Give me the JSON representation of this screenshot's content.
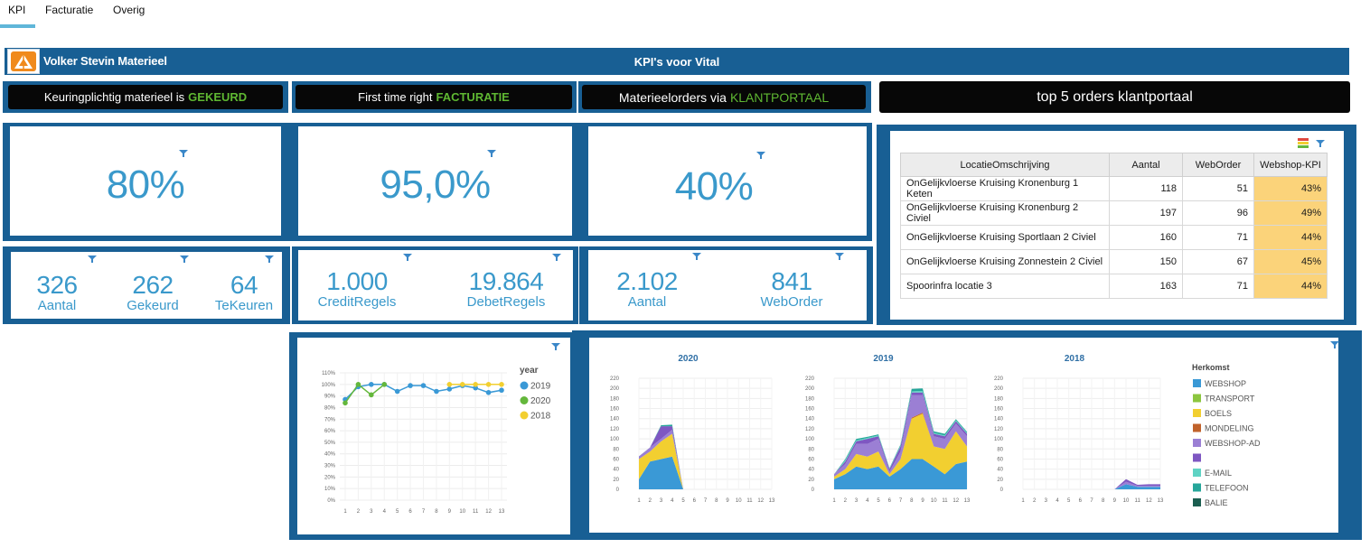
{
  "tabs": [
    {
      "label": "KPI"
    },
    {
      "label": "Facturatie"
    },
    {
      "label": "Overig"
    }
  ],
  "header": {
    "company": "Volker Stevin Materieel",
    "title": "KPI's voor Vital"
  },
  "sections": {
    "keuring": {
      "text": "Keuringplichtig materieel is",
      "highlight": "GEKEURD"
    },
    "facturatie": {
      "text": "First time right",
      "highlight": "FACTURATIE"
    },
    "klantportaal": {
      "text": "Materieelorders via",
      "highlight": "KLANTPORTAAL"
    },
    "top5": {
      "text": "top 5 orders klantportaal"
    }
  },
  "kpis": {
    "keuring": {
      "value": "80%",
      "items": [
        {
          "value": "326",
          "label": "Aantal"
        },
        {
          "value": "262",
          "label": "Gekeurd"
        },
        {
          "value": "64",
          "label": "TeKeuren"
        }
      ]
    },
    "facturatie": {
      "value": "95,0%",
      "items": [
        {
          "value": "1.000",
          "label": "CreditRegels"
        },
        {
          "value": "19.864",
          "label": "DebetRegels"
        }
      ]
    },
    "klantportaal": {
      "value": "40%",
      "items": [
        {
          "value": "2.102",
          "label": "Aantal"
        },
        {
          "value": "841",
          "label": "WebOrder"
        }
      ]
    }
  },
  "top5_table": {
    "columns": [
      "LocatieOmschrijving",
      "Aantal",
      "WebOrder",
      "Webshop-KPI"
    ],
    "rows": [
      [
        "OnGelijkvloerse Kruising Kronenburg 1 Keten",
        "118",
        "51",
        "43%"
      ],
      [
        "OnGelijkvloerse Kruising Kronenburg 2 Civiel",
        "197",
        "96",
        "49%"
      ],
      [
        "OnGelijkvloerse Kruising Sportlaan 2 Civiel",
        "160",
        "71",
        "44%"
      ],
      [
        "OnGelijkvloerse Kruising Zonnestein 2 Civiel",
        "150",
        "67",
        "45%"
      ],
      [
        "Spoorinfra locatie 3",
        "163",
        "71",
        "44%"
      ]
    ]
  },
  "colors": {
    "navy": "#185f94",
    "kpi_blue": "#3a99cb",
    "green": "#5fb832",
    "yellow": "#f2cf30",
    "kpi_cell": "#fbd37a"
  },
  "chart_data": [
    {
      "type": "line",
      "title": "",
      "x": [
        1,
        2,
        3,
        4,
        5,
        6,
        7,
        8,
        9,
        10,
        11,
        12,
        13
      ],
      "yticks": [
        "0%",
        "10%",
        "20%",
        "30%",
        "40%",
        "50%",
        "60%",
        "70%",
        "80%",
        "90%",
        "100%",
        "110%"
      ],
      "ylim": [
        0,
        110
      ],
      "legend_title": "year",
      "series": [
        {
          "name": "2019",
          "color": "#3a99d6",
          "values": [
            87,
            98,
            100,
            100,
            94,
            99,
            99,
            94,
            96,
            99,
            97,
            93,
            95
          ]
        },
        {
          "name": "2020",
          "color": "#64b73c",
          "values": [
            84,
            100,
            91,
            100,
            null,
            null,
            null,
            null,
            null,
            null,
            null,
            null,
            null
          ]
        },
        {
          "name": "2018",
          "color": "#f2cf30",
          "values": [
            null,
            null,
            null,
            null,
            null,
            null,
            null,
            null,
            100,
            100,
            100,
            100,
            100
          ]
        }
      ]
    },
    {
      "type": "area",
      "stacked": true,
      "x": [
        1,
        2,
        3,
        4,
        5,
        6,
        7,
        8,
        9,
        10,
        11,
        12,
        13
      ],
      "yticks": [
        "0",
        "20",
        "40",
        "60",
        "80",
        "100",
        "120",
        "140",
        "160",
        "180",
        "200",
        "220"
      ],
      "ylim": [
        0,
        220
      ],
      "legend_title": "Herkomst",
      "series_names": [
        "WEBSHOP",
        "TRANSPORT",
        "BOELS",
        "MONDELING",
        "WEBSHOP-AD",
        "",
        "E-MAIL",
        "TELEFOON",
        "BALIE"
      ],
      "series_colors": [
        "#3a99d6",
        "#8cc63f",
        "#f2cf30",
        "#c0622b",
        "#9b7fd4",
        "#7e57c2",
        "#5fd3c4",
        "#26a69a",
        "#1b5e50"
      ],
      "panels": [
        {
          "title": "2020",
          "stacks": [
            [
              20,
              55,
              60,
              65,
              0,
              0,
              0,
              0,
              0,
              0,
              0,
              0,
              0
            ],
            [
              0,
              0,
              0,
              0,
              0,
              0,
              0,
              0,
              0,
              0,
              0,
              0,
              0
            ],
            [
              40,
              20,
              35,
              45,
              0,
              0,
              0,
              0,
              0,
              0,
              0,
              0,
              0
            ],
            [
              0,
              0,
              0,
              0,
              0,
              0,
              0,
              0,
              0,
              0,
              0,
              0,
              0
            ],
            [
              5,
              8,
              5,
              8,
              0,
              0,
              0,
              0,
              0,
              0,
              0,
              0,
              0
            ],
            [
              0,
              0,
              25,
              7,
              0,
              0,
              0,
              0,
              0,
              0,
              0,
              0,
              0
            ],
            [
              0,
              0,
              0,
              0,
              0,
              0,
              0,
              0,
              0,
              0,
              0,
              0,
              0
            ],
            [
              0,
              0,
              2,
              3,
              0,
              0,
              0,
              0,
              0,
              0,
              0,
              0,
              0
            ],
            [
              0,
              0,
              0,
              0,
              0,
              0,
              0,
              0,
              0,
              0,
              0,
              0,
              0
            ]
          ]
        },
        {
          "title": "2019",
          "stacks": [
            [
              20,
              30,
              45,
              40,
              45,
              25,
              40,
              60,
              60,
              45,
              30,
              50,
              55
            ],
            [
              0,
              0,
              0,
              0,
              0,
              0,
              0,
              0,
              0,
              0,
              0,
              0,
              0
            ],
            [
              5,
              10,
              25,
              25,
              30,
              5,
              20,
              80,
              90,
              40,
              50,
              65,
              30
            ],
            [
              0,
              0,
              0,
              0,
              0,
              0,
              0,
              2,
              2,
              0,
              0,
              0,
              0
            ],
            [
              5,
              10,
              20,
              25,
              25,
              5,
              15,
              45,
              35,
              20,
              20,
              15,
              20
            ],
            [
              0,
              5,
              5,
              10,
              5,
              5,
              10,
              5,
              5,
              5,
              5,
              5,
              5
            ],
            [
              0,
              3,
              2,
              2,
              2,
              1,
              2,
              2,
              3,
              2,
              2,
              2,
              2
            ],
            [
              0,
              2,
              3,
              2,
              2,
              1,
              2,
              5,
              5,
              3,
              3,
              2,
              2
            ],
            [
              0,
              0,
              0,
              0,
              0,
              0,
              0,
              0,
              0,
              0,
              0,
              0,
              0
            ]
          ]
        },
        {
          "title": "2018",
          "stacks": [
            [
              0,
              0,
              0,
              0,
              0,
              0,
              0,
              0,
              0,
              10,
              5,
              5,
              5
            ],
            [
              0,
              0,
              0,
              0,
              0,
              0,
              0,
              0,
              0,
              0,
              0,
              0,
              0
            ],
            [
              0,
              0,
              0,
              0,
              0,
              0,
              0,
              0,
              0,
              0,
              0,
              0,
              0
            ],
            [
              0,
              0,
              0,
              0,
              0,
              0,
              0,
              0,
              0,
              0,
              0,
              0,
              0
            ],
            [
              0,
              0,
              0,
              0,
              0,
              0,
              0,
              0,
              0,
              5,
              2,
              2,
              2
            ],
            [
              0,
              0,
              0,
              0,
              0,
              0,
              0,
              0,
              0,
              5,
              2,
              3,
              3
            ],
            [
              0,
              0,
              0,
              0,
              0,
              0,
              0,
              0,
              0,
              0,
              0,
              0,
              0
            ],
            [
              0,
              0,
              0,
              0,
              0,
              0,
              0,
              0,
              0,
              0,
              0,
              0,
              0
            ],
            [
              0,
              0,
              0,
              0,
              0,
              0,
              0,
              0,
              0,
              0,
              0,
              0,
              0
            ]
          ]
        }
      ]
    }
  ]
}
